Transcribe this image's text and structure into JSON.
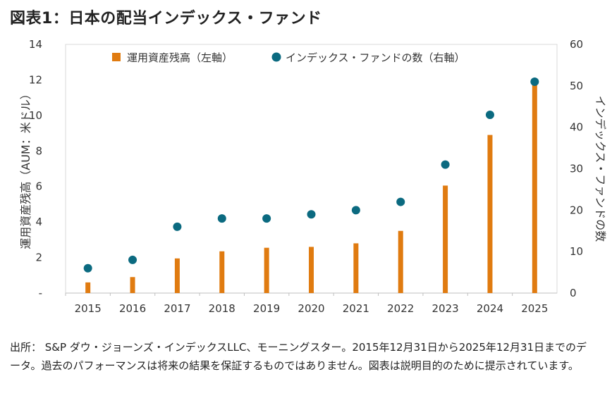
{
  "title": "図表1：日本の配当インデックス・ファンド",
  "source_note": "出所： S&P ダウ・ジョーンズ・インデックスLLC、モーニングスター。2015年12月31日から2025年12月31日までのデータ。過去のパフォーマンスは将来の結果を保証するものではありません。図表は説明目的のために提示されています。",
  "colors": {
    "bar": "#E07B10",
    "dot": "#0B6A80",
    "grid": "#d9d9d9",
    "text": "#333333"
  },
  "chart_data": {
    "type": "bar+scatter",
    "categories": [
      "2015",
      "2016",
      "2017",
      "2018",
      "2019",
      "2020",
      "2021",
      "2022",
      "2023",
      "2024",
      "2025"
    ],
    "series": [
      {
        "name": "運用資産残高（左軸）",
        "axis": "left",
        "kind": "bar",
        "values": [
          0.6,
          0.9,
          1.95,
          2.35,
          2.55,
          2.6,
          2.8,
          3.5,
          6.05,
          8.9,
          11.85
        ]
      },
      {
        "name": "インデックス・ファンドの数（右軸）",
        "axis": "right",
        "kind": "scatter",
        "values": [
          6,
          8,
          16,
          18,
          18,
          19,
          20,
          22,
          31,
          43,
          51
        ]
      }
    ],
    "ylabel_left": "運用資産残高（AUM：米ドル）",
    "ylabel_right": "インデックス・ファンドの数",
    "ylim_left": [
      0,
      14
    ],
    "ylim_right": [
      0,
      60
    ],
    "yticks_left": [
      "-",
      "2",
      "4",
      "6",
      "8",
      "10",
      "12",
      "14"
    ],
    "yticks_right": [
      "0",
      "10",
      "20",
      "30",
      "40",
      "50",
      "60"
    ],
    "grid": false,
    "legend": "top-center"
  }
}
